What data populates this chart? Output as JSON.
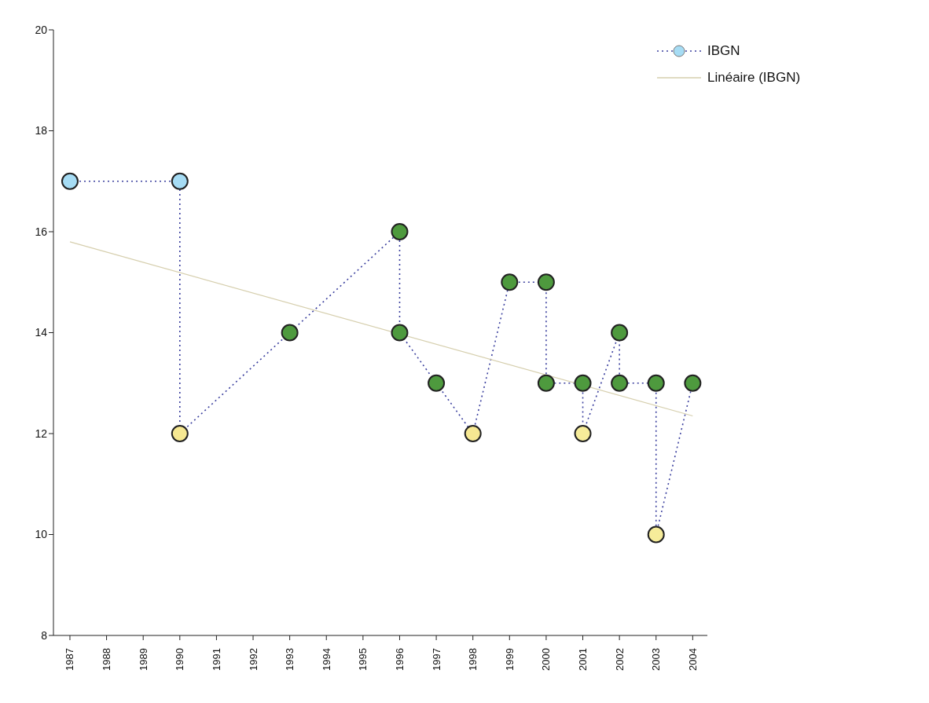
{
  "chart_data": {
    "type": "line",
    "xlim": [
      1986.55,
      2004.4
    ],
    "xticks": [
      1987,
      1988,
      1989,
      1990,
      1991,
      1992,
      1993,
      1994,
      1995,
      1996,
      1997,
      1998,
      1999,
      2000,
      2001,
      2002,
      2003,
      2004
    ],
    "ylim": [
      8,
      20
    ],
    "yticks": [
      8,
      10,
      12,
      14,
      16,
      18,
      20
    ],
    "legend": "top right",
    "series": [
      {
        "name": "IBGN",
        "color": "#3a3f9e",
        "marker": "circle",
        "line_style": "dotted",
        "x": [
          1987,
          1990,
          1990,
          1993,
          1996,
          1996,
          1997,
          1998,
          1999,
          2000,
          2000,
          2001,
          2001,
          2002,
          2002,
          2003,
          2003,
          2004
        ],
        "values": [
          17,
          17,
          12,
          14,
          16,
          14,
          13,
          12,
          15,
          15,
          13,
          13,
          12,
          14,
          13,
          13,
          10,
          13
        ],
        "colors": [
          "#a6dcf4",
          "#a6dcf4",
          "#f6e892",
          "#4e9a3e",
          "#4e9a3e",
          "#4e9a3e",
          "#4e9a3e",
          "#f6e892",
          "#4e9a3e",
          "#4e9a3e",
          "#4e9a3e",
          "#4e9a3e",
          "#f6ec9a",
          "#4e9a3e",
          "#4e9a3e",
          "#4e9a3e",
          "#f6ec9a",
          "#4e9a3e"
        ]
      },
      {
        "name": "Linéaire (IBGN)",
        "type": "line",
        "color": "#d6cfae",
        "marker": "none",
        "line_style": "solid",
        "x": [
          1987,
          2004
        ],
        "values": [
          15.8,
          12.35
        ]
      }
    ]
  }
}
